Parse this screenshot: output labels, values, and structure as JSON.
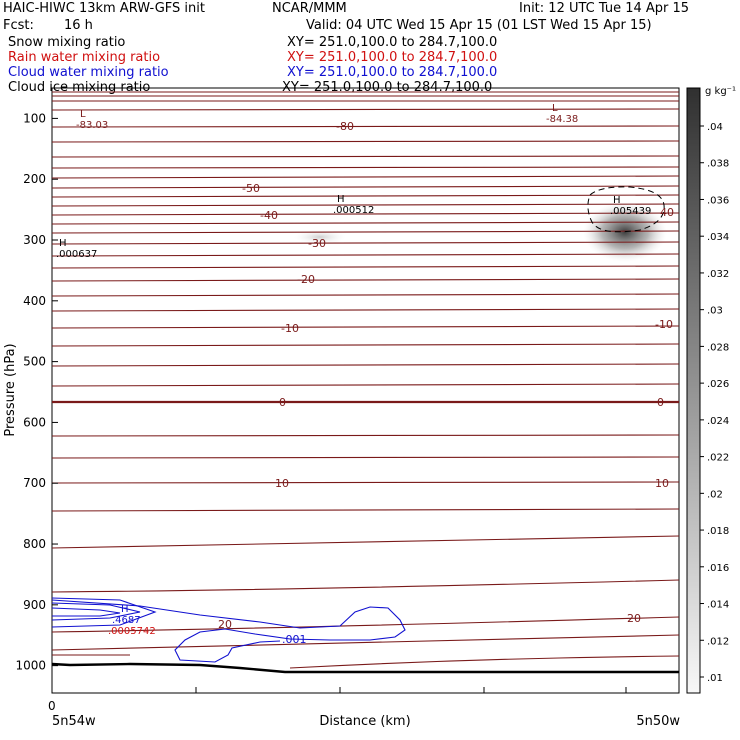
{
  "header": {
    "title_left": "HAIC-HIWC 13km ARW-GFS init",
    "org": "NCAR/MMM",
    "init": "Init: 12 UTC Tue 14 Apr 15",
    "fcst_label": "Fcst:",
    "fcst_value": "16 h",
    "valid": "Valid: 04 UTC Wed 15 Apr 15 (01 LST Wed 15 Apr 15)",
    "fields": [
      {
        "name": "Snow mixing ratio",
        "xy": "XY= 251.0,100.0 to 284.7,100.0",
        "color": "#000000"
      },
      {
        "name": "Rain water mixing ratio",
        "xy": "XY= 251.0,100.0 to 284.7,100.0",
        "color": "#d01010"
      },
      {
        "name": "Cloud water mixing ratio",
        "xy": "XY= 251.0,100.0 to 284.7,100.0",
        "color": "#1010d0"
      },
      {
        "name": "Cloud ice mixing ratio",
        "xy": "XY= 251.0,100.0 to 284.7,100.0",
        "color": "#000000"
      }
    ]
  },
  "chart_data": {
    "type": "contour",
    "ylabel": "Pressure (hPa)",
    "xlabel": "Distance (km)",
    "x_start_label": "5n54w",
    "x_end_label": "5n50w",
    "x_zero_label": "0",
    "y_ticks": [
      100,
      200,
      300,
      400,
      500,
      600,
      700,
      800,
      900,
      1000
    ],
    "y_range": [
      50,
      1045
    ],
    "colorbar": {
      "unit": "g kg⁻¹",
      "ticks": [
        ".01",
        ".012",
        ".014",
        ".016",
        ".018",
        ".02",
        ".022",
        ".024",
        ".026",
        ".028",
        ".03",
        ".032",
        ".034",
        ".036",
        ".038",
        ".04"
      ]
    },
    "temperature_contour_labels": [
      "-80",
      "-50",
      "-40",
      "-30",
      "-20",
      "-10",
      "0",
      "10",
      "20"
    ],
    "extrema_labels": [
      {
        "type": "L",
        "value": "-83.03"
      },
      {
        "type": "L",
        "value": "-84.38"
      },
      {
        "type": "H",
        "value": ".000512"
      },
      {
        "type": "H",
        "value": ".005439"
      },
      {
        "type": "H",
        "value": ".000637"
      },
      {
        "type": "H",
        "value": ".4687"
      },
      {
        "type": "H",
        "value": ".0005742"
      }
    ],
    "cloud_water_label": ".001",
    "rain_label": "20",
    "right_label_40": "40",
    "colors": {
      "temperature": "#7a1a1a",
      "cloud_water": "#1010d0",
      "rain": "#d01010",
      "terrain": "#000000"
    }
  }
}
